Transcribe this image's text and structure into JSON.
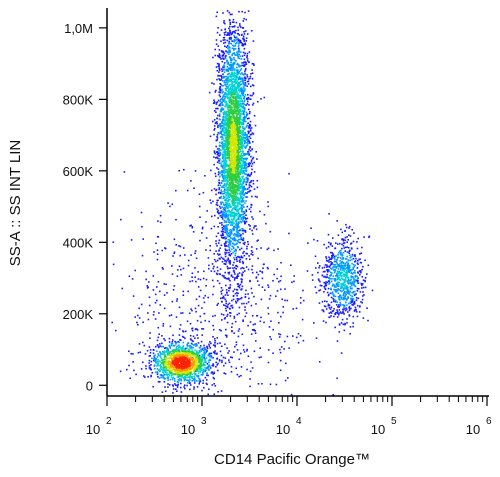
{
  "chart_data": {
    "type": "scatter",
    "subtype": "flow-cytometry density dot plot",
    "xlabel": "CD14 Pacific Orange™",
    "ylabel": "SS-A :: SS INT LIN",
    "x_scale": "log",
    "xlim": [
      100,
      1000000
    ],
    "x_ticks": [
      {
        "base": "10",
        "exp": "2",
        "value": 100
      },
      {
        "base": "10",
        "exp": "3",
        "value": 1000
      },
      {
        "base": "10",
        "exp": "4",
        "value": 10000
      },
      {
        "base": "10",
        "exp": "5",
        "value": 100000
      },
      {
        "base": "10",
        "exp": "6",
        "value": 1000000
      }
    ],
    "y_scale": "linear",
    "ylim": [
      -30000,
      1050000
    ],
    "y_ticks": [
      {
        "label": "0",
        "value": 0
      },
      {
        "label": "200K",
        "value": 200000
      },
      {
        "label": "400K",
        "value": 400000
      },
      {
        "label": "600K",
        "value": 600000
      },
      {
        "label": "800K",
        "value": 800000
      },
      {
        "label": "1,0M",
        "value": 1000000
      }
    ],
    "grid": false,
    "legend": "none",
    "colormap": [
      "#1a1aff",
      "#0099ff",
      "#00d4d4",
      "#2ecc40",
      "#d4e600",
      "#ff9900",
      "#ff2200"
    ],
    "populations": [
      {
        "x_center": 600,
        "x_spread_log": 0.16,
        "y_center": 65000,
        "y_spread": 28000,
        "count": 1300,
        "peak_density": 1.0
      },
      {
        "x_center": 2100,
        "x_spread_log": 0.085,
        "y_center": 670000,
        "y_spread": 170000,
        "count": 3600,
        "peak_density": 0.6
      },
      {
        "x_center": 30000,
        "x_spread_log": 0.11,
        "y_center": 300000,
        "y_spread": 58000,
        "count": 750,
        "peak_density": 0.3
      },
      {
        "x_center": 1500,
        "x_spread_log": 0.5,
        "y_center": 230000,
        "y_spread": 150000,
        "count": 650,
        "peak_density": 0.05
      }
    ]
  }
}
